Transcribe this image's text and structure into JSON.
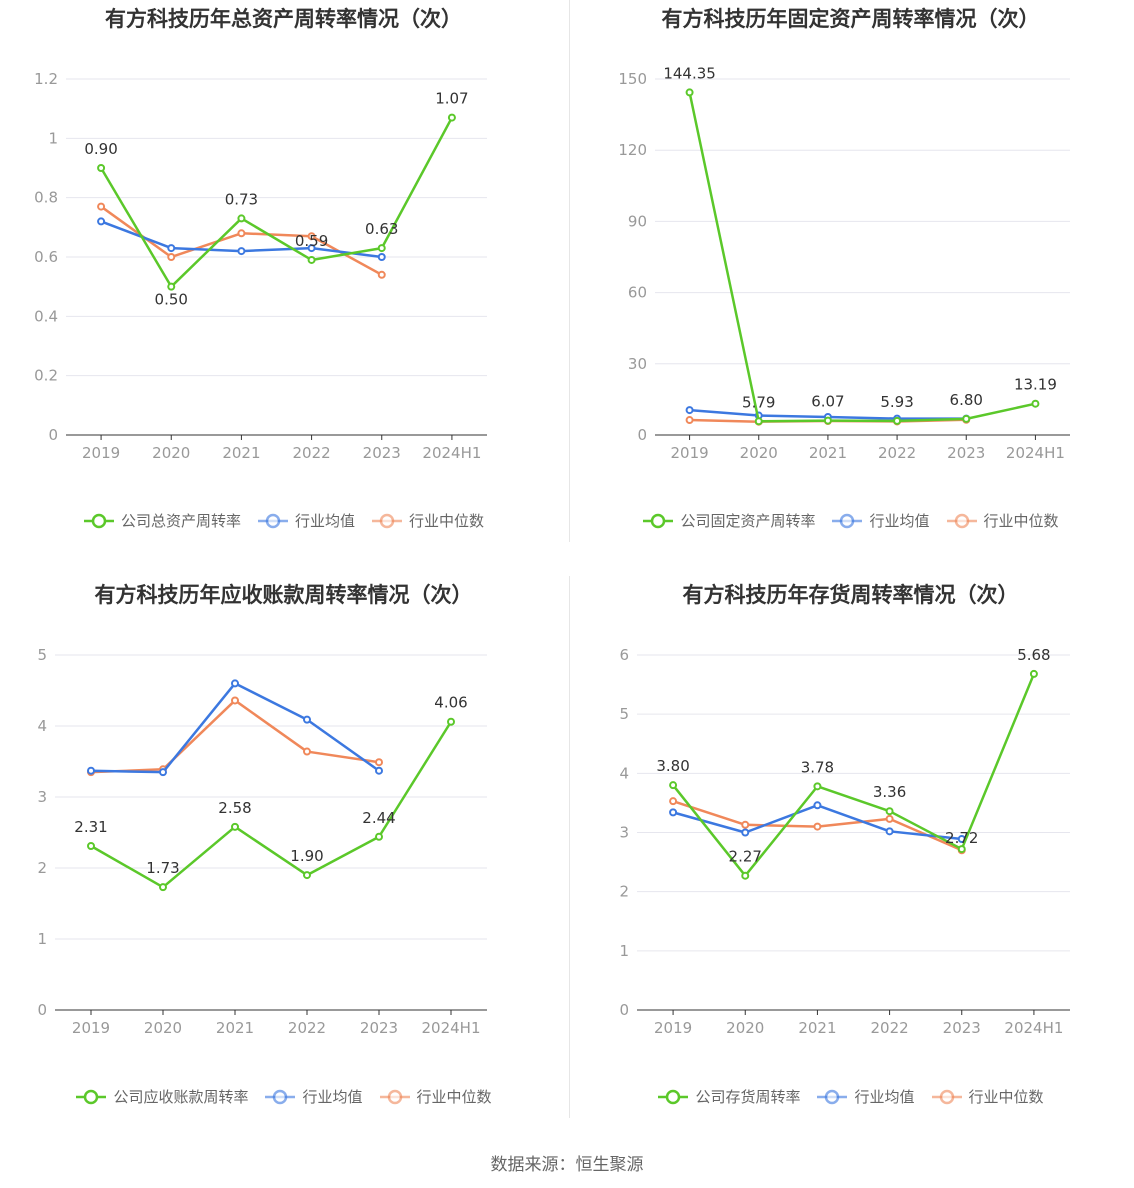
{
  "source": "数据来源：恒生聚源",
  "colors": {
    "company": "#5bc82a",
    "avg": "#3c78e0",
    "median": "#f0885a",
    "grid": "#e6e6ee",
    "axis": "#333333",
    "tick": "#999999",
    "label": "#333333"
  },
  "chart_data": [
    {
      "type": "line",
      "title": "有方科技历年总资产周转率情况（次）",
      "categories": [
        "2019",
        "2020",
        "2021",
        "2022",
        "2023",
        "2024H1"
      ],
      "yticks": [
        "0",
        "0.2",
        "0.4",
        "0.6",
        "0.8",
        "1",
        "1.2"
      ],
      "ylim": [
        0,
        1.2
      ],
      "series": [
        {
          "key": "company",
          "name": "公司总资产周转率",
          "values": [
            0.9,
            0.5,
            0.73,
            0.59,
            0.63,
            1.07
          ],
          "labels": [
            "0.90",
            "0.50",
            "0.73",
            "0.59",
            "0.63",
            "1.07"
          ]
        },
        {
          "key": "avg",
          "name": "行业均值",
          "values": [
            0.72,
            0.63,
            0.62,
            0.63,
            0.6,
            null
          ]
        },
        {
          "key": "median",
          "name": "行业中位数",
          "values": [
            0.77,
            0.6,
            0.68,
            0.67,
            0.54,
            null
          ]
        }
      ]
    },
    {
      "type": "line",
      "title": "有方科技历年固定资产周转率情况（次）",
      "categories": [
        "2019",
        "2020",
        "2021",
        "2022",
        "2023",
        "2024H1"
      ],
      "yticks": [
        "0",
        "30",
        "60",
        "90",
        "120",
        "150"
      ],
      "ylim": [
        0,
        150
      ],
      "series": [
        {
          "key": "company",
          "name": "公司固定资产周转率",
          "values": [
            144.35,
            5.79,
            6.07,
            5.93,
            6.8,
            13.19
          ],
          "labels": [
            "144.35",
            "5.79",
            "6.07",
            "5.93",
            "6.80",
            "13.19"
          ]
        },
        {
          "key": "avg",
          "name": "行业均值",
          "values": [
            10.5,
            8.2,
            7.6,
            6.9,
            6.9,
            null
          ]
        },
        {
          "key": "median",
          "name": "行业中位数",
          "values": [
            6.3,
            5.6,
            5.9,
            5.7,
            6.4,
            null
          ]
        }
      ]
    },
    {
      "type": "line",
      "title": "有方科技历年应收账款周转率情况（次）",
      "categories": [
        "2019",
        "2020",
        "2021",
        "2022",
        "2023",
        "2024H1"
      ],
      "yticks": [
        "0",
        "1",
        "2",
        "3",
        "4",
        "5"
      ],
      "ylim": [
        0,
        5
      ],
      "series": [
        {
          "key": "company",
          "name": "公司应收账款周转率",
          "values": [
            2.31,
            1.73,
            2.58,
            1.9,
            2.44,
            4.06
          ],
          "labels": [
            "2.31",
            "1.73",
            "2.58",
            "1.90",
            "2.44",
            "4.06"
          ]
        },
        {
          "key": "avg",
          "name": "行业均值",
          "values": [
            3.37,
            3.35,
            4.6,
            4.09,
            3.37,
            null
          ]
        },
        {
          "key": "median",
          "name": "行业中位数",
          "values": [
            3.35,
            3.39,
            4.36,
            3.64,
            3.49,
            null
          ]
        }
      ]
    },
    {
      "type": "line",
      "title": "有方科技历年存货周转率情况（次）",
      "categories": [
        "2019",
        "2020",
        "2021",
        "2022",
        "2023",
        "2024H1"
      ],
      "yticks": [
        "0",
        "1",
        "2",
        "3",
        "4",
        "5",
        "6"
      ],
      "ylim": [
        0,
        6
      ],
      "series": [
        {
          "key": "company",
          "name": "公司存货周转率",
          "values": [
            3.8,
            2.27,
            3.78,
            3.36,
            2.72,
            5.68
          ],
          "labels": [
            "3.80",
            "2.27",
            "3.78",
            "3.36",
            "2.72",
            "5.68"
          ]
        },
        {
          "key": "avg",
          "name": "行业均值",
          "values": [
            3.34,
            3.0,
            3.46,
            3.02,
            2.89,
            null
          ]
        },
        {
          "key": "median",
          "name": "行业中位数",
          "values": [
            3.53,
            3.13,
            3.1,
            3.23,
            2.7,
            null
          ]
        }
      ]
    }
  ]
}
